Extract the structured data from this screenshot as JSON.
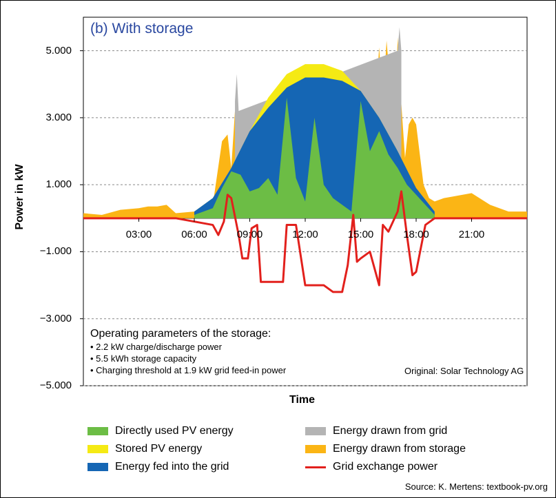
{
  "source_note": "Source: K. Mertens: textbook-pv.org",
  "credit": "Original: Solar Technology AG",
  "operating": {
    "title": "Operating parameters of the storage:",
    "items": [
      "• 2.2 kW charge/discharge power",
      "• 5.5 kWh storage capacity",
      "• Charging threshold at 1.9 kW grid feed-in power"
    ]
  },
  "chart_data": {
    "type": "area",
    "title": "(b) With storage",
    "xlabel": "Time",
    "ylabel": "Power in kW",
    "xlim": [
      0,
      24
    ],
    "ylim": [
      -5,
      6
    ],
    "yticks": [
      5,
      3,
      1,
      -1,
      -3,
      -5
    ],
    "ytick_labels": [
      "5.000",
      "3.000",
      "1.000",
      "−1.000",
      "−3.000",
      "−5.000"
    ],
    "xticks": [
      3,
      6,
      9,
      12,
      15,
      18,
      21
    ],
    "xtick_labels": [
      "03:00",
      "06:00",
      "09:00",
      "12:00",
      "15:00",
      "18:00",
      "21:00"
    ],
    "grid": true,
    "legend_position": "bottom",
    "series": [
      {
        "name": "Energy drawn from storage",
        "color": "#fbb515",
        "x": [
          0,
          1,
          2,
          3,
          3.5,
          4,
          4.5,
          5,
          6,
          7,
          7.5,
          7.8,
          8,
          8.2,
          8.4,
          8.6,
          8.8,
          9,
          9.5,
          10,
          11,
          12,
          13,
          14,
          14.5,
          15,
          15.5,
          16,
          16.2,
          16.4,
          16.6,
          16.8,
          17,
          17.2,
          17.4,
          17.6,
          17.8,
          18,
          18.4,
          18.7,
          19,
          19.5,
          20,
          21,
          22,
          23,
          24
        ],
        "y": [
          0.15,
          0.1,
          0.25,
          0.3,
          0.35,
          0.35,
          0.4,
          0.15,
          0.2,
          0.4,
          2.3,
          2.5,
          1.5,
          3.2,
          2.7,
          1,
          1,
          1,
          1,
          1,
          1,
          1,
          1,
          1,
          1,
          1,
          1,
          5.1,
          3.5,
          5.3,
          4,
          2,
          5.4,
          3.4,
          1.8,
          2.8,
          3.0,
          2.8,
          1,
          0.6,
          0.5,
          0.6,
          0.65,
          0.75,
          0.4,
          0.2,
          0.2
        ]
      },
      {
        "name": "Energy drawn from grid",
        "color": "#b4b4b4",
        "x": [
          8.2,
          8.3,
          8.4,
          17,
          17.1,
          17.2
        ],
        "y": [
          3.5,
          4.3,
          3.2,
          5.0,
          5.7,
          5.0
        ]
      },
      {
        "name": "Stored PV energy",
        "color": "#f5ea14",
        "x": [
          6,
          7,
          8,
          9,
          10,
          11,
          12,
          13,
          14,
          15,
          16,
          17,
          18,
          19
        ],
        "y": [
          0.2,
          0.6,
          1.5,
          2.6,
          3.6,
          4.3,
          4.6,
          4.6,
          4.4,
          3.8,
          3.0,
          2.0,
          0.9,
          0.2
        ]
      },
      {
        "name": "Energy fed into the grid",
        "color": "#1566b4",
        "x": [
          6,
          7,
          8,
          9,
          10,
          11,
          12,
          13,
          14,
          15,
          16,
          17,
          18,
          19
        ],
        "y": [
          0.2,
          0.6,
          1.5,
          2.6,
          3.3,
          3.9,
          4.2,
          4.2,
          4.1,
          3.8,
          3.0,
          2.0,
          0.9,
          0.2
        ]
      },
      {
        "name": "Directly used PV energy",
        "color": "#6cbd45",
        "x": [
          6,
          7,
          7.5,
          8,
          8.5,
          9,
          9.5,
          10,
          10.5,
          11,
          11.5,
          12,
          12.5,
          13,
          13.5,
          14,
          14.5,
          15,
          15.5,
          16,
          16.5,
          17,
          17.5,
          18,
          19
        ],
        "y": [
          0.1,
          0.3,
          0.9,
          1.4,
          1.3,
          0.8,
          0.9,
          1.2,
          0.7,
          3.6,
          1.2,
          0.5,
          3.0,
          1.0,
          0.6,
          0.4,
          0.2,
          3.5,
          2.0,
          2.6,
          1.9,
          1.5,
          1.0,
          0.7,
          0.1
        ]
      },
      {
        "name": "Grid exchange power",
        "color": "#e2201c",
        "x": [
          0,
          5,
          6,
          7,
          7.3,
          7.6,
          7.8,
          8,
          8.4,
          8.6,
          8.9,
          9.1,
          9.4,
          9.6,
          10,
          10.5,
          10.8,
          11,
          11.5,
          12,
          12.5,
          13,
          13.5,
          14,
          14.3,
          14.6,
          14.8,
          15,
          15.5,
          16,
          16.2,
          16.5,
          17,
          17.2,
          17.5,
          17.8,
          18,
          18.5,
          19,
          24
        ],
        "y": [
          0,
          0,
          -0.1,
          -0.2,
          -0.5,
          -0.1,
          0.7,
          0.6,
          -0.5,
          -1.2,
          -1.2,
          -0.3,
          -0.2,
          -1.9,
          -1.9,
          -1.9,
          -1.9,
          -0.2,
          -0.2,
          -2.0,
          -2.0,
          -2.0,
          -2.2,
          -2.2,
          -1.4,
          0.1,
          -1.3,
          -1.2,
          -1.0,
          -2.0,
          -0.2,
          -0.4,
          0.2,
          0.8,
          -0.5,
          -1.7,
          -1.6,
          -0.2,
          0,
          0
        ]
      }
    ]
  },
  "legend": [
    {
      "label": "Directly used PV energy",
      "color": "#6cbd45",
      "kind": "box"
    },
    {
      "label": "Stored PV energy",
      "color": "#f5ea14",
      "kind": "box"
    },
    {
      "label": "Energy fed into the grid",
      "color": "#1566b4",
      "kind": "box"
    },
    {
      "label": "Energy drawn from grid",
      "color": "#b4b4b4",
      "kind": "box"
    },
    {
      "label": "Energy drawn from storage",
      "color": "#fbb515",
      "kind": "box"
    },
    {
      "label": "Grid exchange power",
      "color": "#e2201c",
      "kind": "line"
    }
  ]
}
